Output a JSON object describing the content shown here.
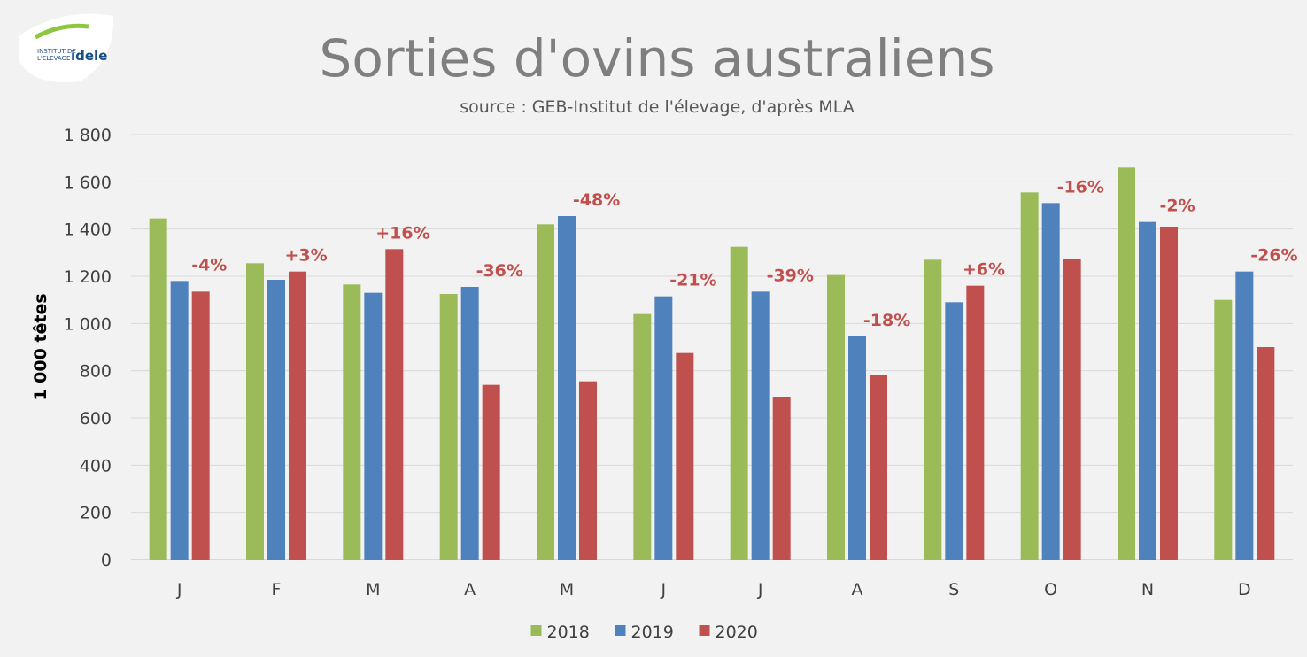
{
  "chart_data": {
    "type": "bar",
    "title": "Sorties d'ovins australiens",
    "subtitle": "source : GEB-Institut de l'élevage, d'après MLA",
    "ylabel": "1 000 têtes",
    "logo": {
      "line1": "INSTITUT DE",
      "line2": "L'ELEVAGE",
      "brand": "idele"
    },
    "categories": [
      "J",
      "F",
      "M",
      "A",
      "M",
      "J",
      "J",
      "A",
      "S",
      "O",
      "N",
      "D"
    ],
    "series": [
      {
        "name": "2018",
        "color": "#9bbb59",
        "values": [
          1445,
          1255,
          1165,
          1125,
          1420,
          1040,
          1325,
          1205,
          1270,
          1555,
          1660,
          1100
        ]
      },
      {
        "name": "2019",
        "color": "#4f81bd",
        "values": [
          1180,
          1185,
          1130,
          1155,
          1455,
          1115,
          1135,
          945,
          1090,
          1510,
          1430,
          1220
        ]
      },
      {
        "name": "2020",
        "color": "#c0504d",
        "values": [
          1135,
          1220,
          1315,
          740,
          755,
          875,
          690,
          780,
          1160,
          1275,
          1410,
          900
        ]
      }
    ],
    "annotations": [
      "-4%",
      "+3%",
      "+16%",
      "-36%",
      "-48%",
      "-21%",
      "-39%",
      "-18%",
      "+6%",
      "-16%",
      "-2%",
      "-26%"
    ],
    "annotation_color": "#c0504d",
    "ylim": [
      0,
      1800
    ],
    "yticks": [
      0,
      200,
      400,
      600,
      800,
      {
        "value": 1000,
        "label": "1 000"
      },
      {
        "value": 1200,
        "label": "1 200"
      },
      {
        "value": 1400,
        "label": "1 400"
      },
      {
        "value": 1600,
        "label": "1 600"
      },
      {
        "value": 1800,
        "label": "1 800"
      }
    ],
    "grid": true,
    "legend": "bottom"
  }
}
